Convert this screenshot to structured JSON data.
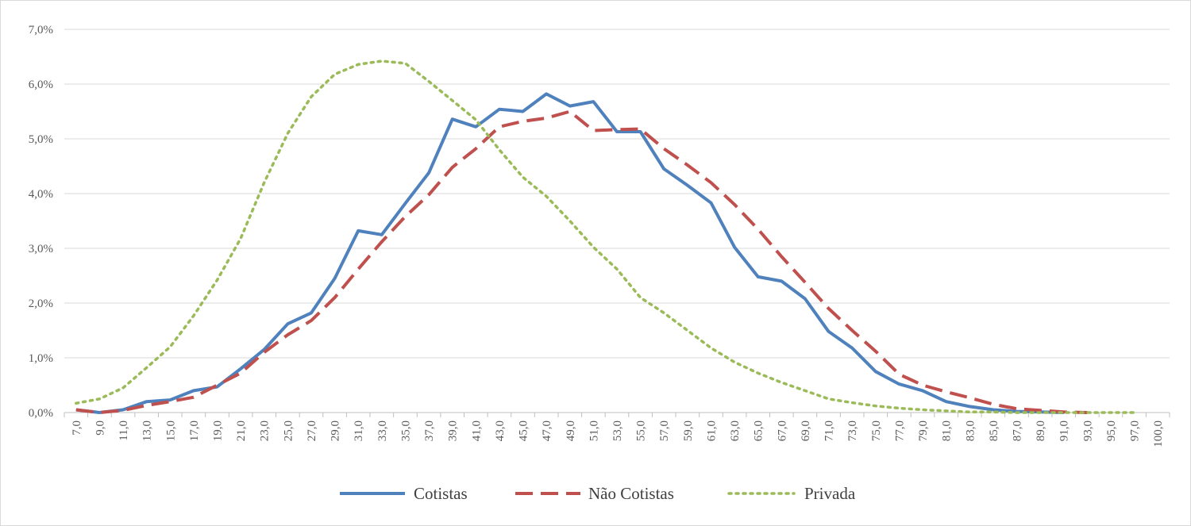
{
  "chart_data": {
    "type": "line",
    "title": "",
    "xlabel": "",
    "ylabel": "",
    "ylim": [
      0,
      7
    ],
    "y_ticks": [
      "0,0%",
      "1,0%",
      "2,0%",
      "3,0%",
      "4,0%",
      "5,0%",
      "6,0%",
      "7,0%"
    ],
    "categories": [
      "7,0",
      "9,0",
      "11,0",
      "13,0",
      "15,0",
      "17,0",
      "19,0",
      "21,0",
      "23,0",
      "25,0",
      "27,0",
      "29,0",
      "31,0",
      "33,0",
      "35,0",
      "37,0",
      "39,0",
      "41,0",
      "43,0",
      "45,0",
      "47,0",
      "49,0",
      "51,0",
      "53,0",
      "55,0",
      "57,0",
      "59,0",
      "61,0",
      "63,0",
      "65,0",
      "67,0",
      "69,0",
      "71,0",
      "73,0",
      "75,0",
      "77,0",
      "79,0",
      "81,0",
      "83,0",
      "85,0",
      "87,0",
      "89,0",
      "91,0",
      "93,0",
      "95,0",
      "97,0",
      "100,0"
    ],
    "grid": true,
    "legend_position": "bottom",
    "series": [
      {
        "name": "Cotistas",
        "color": "#4f81bd",
        "style": "solid",
        "values": [
          0.05,
          0.0,
          0.05,
          0.2,
          0.23,
          0.4,
          0.47,
          0.8,
          1.15,
          1.62,
          1.82,
          2.45,
          3.32,
          3.25,
          3.82,
          4.38,
          5.36,
          5.22,
          5.54,
          5.5,
          5.82,
          5.6,
          5.68,
          5.13,
          5.13,
          4.45,
          4.15,
          3.83,
          3.02,
          2.48,
          2.4,
          2.08,
          1.48,
          1.18,
          0.75,
          0.52,
          0.4,
          0.2,
          0.11,
          0.05,
          0.02,
          0.01,
          0.0,
          null,
          null,
          null,
          null
        ]
      },
      {
        "name": "Não Cotistas",
        "color": "#c0504d",
        "style": "dashed",
        "values": [
          0.05,
          0.0,
          0.04,
          0.13,
          0.2,
          0.28,
          0.5,
          0.72,
          1.1,
          1.42,
          1.68,
          2.1,
          2.62,
          3.12,
          3.58,
          3.98,
          4.48,
          4.82,
          5.22,
          5.32,
          5.38,
          5.5,
          5.15,
          5.17,
          5.18,
          4.82,
          4.52,
          4.2,
          3.8,
          3.35,
          2.85,
          2.38,
          1.9,
          1.5,
          1.12,
          0.7,
          0.5,
          0.38,
          0.27,
          0.15,
          0.07,
          0.04,
          0.01,
          0.0,
          null,
          null,
          null
        ]
      },
      {
        "name": "Privada",
        "color": "#9bbb59",
        "style": "dotted",
        "values": [
          0.17,
          0.25,
          0.45,
          0.82,
          1.2,
          1.77,
          2.42,
          3.18,
          4.2,
          5.1,
          5.77,
          6.18,
          6.36,
          6.42,
          6.38,
          6.05,
          5.7,
          5.35,
          4.8,
          4.3,
          3.95,
          3.5,
          3.02,
          2.62,
          2.1,
          1.82,
          1.5,
          1.18,
          0.92,
          0.72,
          0.55,
          0.4,
          0.25,
          0.18,
          0.12,
          0.08,
          0.05,
          0.03,
          0.01,
          0.01,
          0.0,
          0.0,
          0.0,
          0.0,
          0.0,
          0.0,
          null
        ]
      }
    ]
  }
}
